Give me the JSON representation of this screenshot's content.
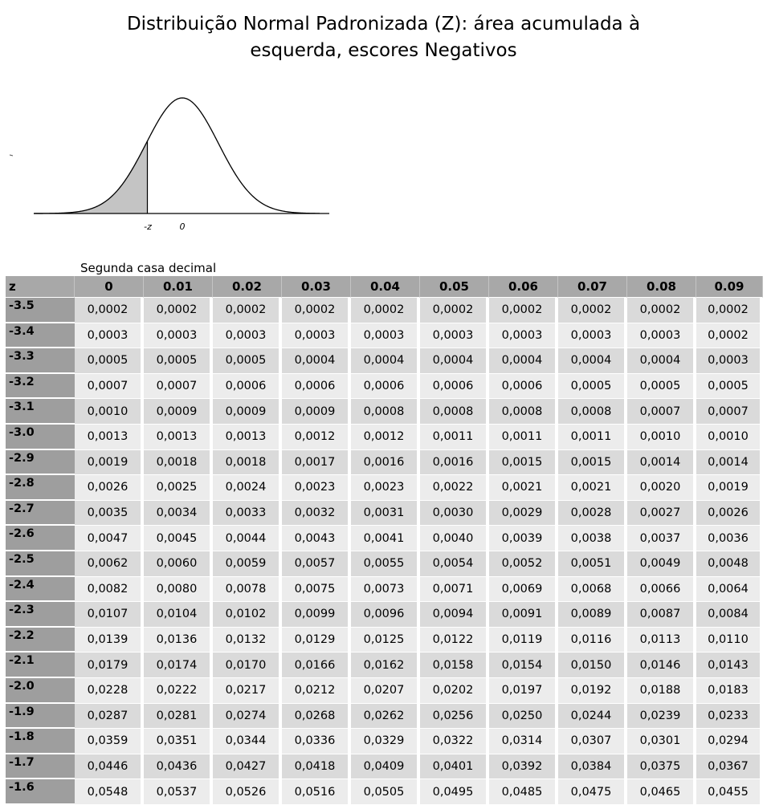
{
  "title": {
    "line1": "Distribuição Normal Padronizada (Z): área acumulada à",
    "line2": "esquerda, escores Negativos"
  },
  "figure": {
    "label_neg_z": "-z",
    "label_zero": "0",
    "shade_color": "#c4c4c4"
  },
  "table": {
    "caption": "Segunda casa decimal",
    "z_header": "z",
    "columns": [
      "0",
      "0.01",
      "0.02",
      "0.03",
      "0.04",
      "0.05",
      "0.06",
      "0.07",
      "0.08",
      "0.09"
    ],
    "rows": [
      {
        "z": "-3.5",
        "values": [
          "0,0002",
          "0,0002",
          "0,0002",
          "0,0002",
          "0,0002",
          "0,0002",
          "0,0002",
          "0,0002",
          "0,0002",
          "0,0002"
        ]
      },
      {
        "z": "-3.4",
        "values": [
          "0,0003",
          "0,0003",
          "0,0003",
          "0,0003",
          "0,0003",
          "0,0003",
          "0,0003",
          "0,0003",
          "0,0003",
          "0,0002"
        ]
      },
      {
        "z": "-3.3",
        "values": [
          "0,0005",
          "0,0005",
          "0,0005",
          "0,0004",
          "0,0004",
          "0,0004",
          "0,0004",
          "0,0004",
          "0,0004",
          "0,0003"
        ]
      },
      {
        "z": "-3.2",
        "values": [
          "0,0007",
          "0,0007",
          "0,0006",
          "0,0006",
          "0,0006",
          "0,0006",
          "0,0006",
          "0,0005",
          "0,0005",
          "0,0005"
        ]
      },
      {
        "z": "-3.1",
        "values": [
          "0,0010",
          "0,0009",
          "0,0009",
          "0,0009",
          "0,0008",
          "0,0008",
          "0,0008",
          "0,0008",
          "0,0007",
          "0,0007"
        ]
      },
      {
        "z": "-3.0",
        "values": [
          "0,0013",
          "0,0013",
          "0,0013",
          "0,0012",
          "0,0012",
          "0,0011",
          "0,0011",
          "0,0011",
          "0,0010",
          "0,0010"
        ]
      },
      {
        "z": "-2.9",
        "values": [
          "0,0019",
          "0,0018",
          "0,0018",
          "0,0017",
          "0,0016",
          "0,0016",
          "0,0015",
          "0,0015",
          "0,0014",
          "0,0014"
        ]
      },
      {
        "z": "-2.8",
        "values": [
          "0,0026",
          "0,0025",
          "0,0024",
          "0,0023",
          "0,0023",
          "0,0022",
          "0,0021",
          "0,0021",
          "0,0020",
          "0,0019"
        ]
      },
      {
        "z": "-2.7",
        "values": [
          "0,0035",
          "0,0034",
          "0,0033",
          "0,0032",
          "0,0031",
          "0,0030",
          "0,0029",
          "0,0028",
          "0,0027",
          "0,0026"
        ]
      },
      {
        "z": "-2.6",
        "values": [
          "0,0047",
          "0,0045",
          "0,0044",
          "0,0043",
          "0,0041",
          "0,0040",
          "0,0039",
          "0,0038",
          "0,0037",
          "0,0036"
        ]
      },
      {
        "z": "-2.5",
        "values": [
          "0,0062",
          "0,0060",
          "0,0059",
          "0,0057",
          "0,0055",
          "0,0054",
          "0,0052",
          "0,0051",
          "0,0049",
          "0,0048"
        ]
      },
      {
        "z": "-2.4",
        "values": [
          "0,0082",
          "0,0080",
          "0,0078",
          "0,0075",
          "0,0073",
          "0,0071",
          "0,0069",
          "0,0068",
          "0,0066",
          "0,0064"
        ]
      },
      {
        "z": "-2.3",
        "values": [
          "0,0107",
          "0,0104",
          "0,0102",
          "0,0099",
          "0,0096",
          "0,0094",
          "0,0091",
          "0,0089",
          "0,0087",
          "0,0084"
        ]
      },
      {
        "z": "-2.2",
        "values": [
          "0,0139",
          "0,0136",
          "0,0132",
          "0,0129",
          "0,0125",
          "0,0122",
          "0,0119",
          "0,0116",
          "0,0113",
          "0,0110"
        ]
      },
      {
        "z": "-2.1",
        "values": [
          "0,0179",
          "0,0174",
          "0,0170",
          "0,0166",
          "0,0162",
          "0,0158",
          "0,0154",
          "0,0150",
          "0,0146",
          "0,0143"
        ]
      },
      {
        "z": "-2.0",
        "values": [
          "0,0228",
          "0,0222",
          "0,0217",
          "0,0212",
          "0,0207",
          "0,0202",
          "0,0197",
          "0,0192",
          "0,0188",
          "0,0183"
        ]
      },
      {
        "z": "-1.9",
        "values": [
          "0,0287",
          "0,0281",
          "0,0274",
          "0,0268",
          "0,0262",
          "0,0256",
          "0,0250",
          "0,0244",
          "0,0239",
          "0,0233"
        ]
      },
      {
        "z": "-1.8",
        "values": [
          "0,0359",
          "0,0351",
          "0,0344",
          "0,0336",
          "0,0329",
          "0,0322",
          "0,0314",
          "0,0307",
          "0,0301",
          "0,0294"
        ]
      },
      {
        "z": "-1.7",
        "values": [
          "0,0446",
          "0,0436",
          "0,0427",
          "0,0418",
          "0,0409",
          "0,0401",
          "0,0392",
          "0,0384",
          "0,0375",
          "0,0367"
        ]
      },
      {
        "z": "-1.6",
        "values": [
          "0,0548",
          "0,0537",
          "0,0526",
          "0,0516",
          "0,0505",
          "0,0495",
          "0,0485",
          "0,0475",
          "0,0465",
          "0,0455"
        ]
      }
    ]
  }
}
